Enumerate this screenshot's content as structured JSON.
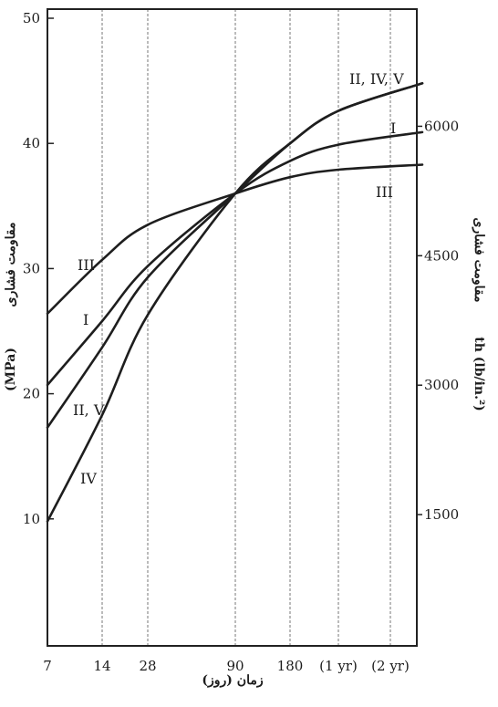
{
  "chart_data": {
    "type": "line",
    "title": "",
    "x": {
      "label": "زمان (روز)",
      "ticks": [
        "7",
        "14",
        "28",
        "90",
        "180",
        "(1 yr)",
        "(2 yr)"
      ]
    },
    "y_left": {
      "label_fa": "مقاومت فشاری",
      "label_unit": "(MPa)",
      "range": [
        0,
        50
      ],
      "ticks": [
        10,
        20,
        30,
        40,
        50
      ]
    },
    "y_right": {
      "label_fa": "مقاومت فشاری",
      "label_unit": "th (lb/in.²)",
      "ticks": [
        1500,
        3000,
        4500,
        6000
      ]
    },
    "grid": "vertical dashed lines at each x tick",
    "series": [
      {
        "name": "I",
        "label_at_start": "I",
        "label_at_end": "I",
        "values": [
          20.7,
          25.8,
          30.2,
          36.0,
          38.6,
          39.9,
          40.9
        ]
      },
      {
        "name": "II, V",
        "label_at_start": "II, V",
        "values": [
          17.3,
          23.7,
          29.3,
          36.0,
          40.0,
          42.6,
          44.8
        ]
      },
      {
        "name": "III",
        "label_at_start": "III",
        "label_at_end": "III",
        "values": [
          26.4,
          30.7,
          33.5,
          36.0,
          37.3,
          37.9,
          38.3
        ]
      },
      {
        "name": "IV",
        "label_at_start": "IV",
        "values": [
          9.8,
          18.3,
          26.3,
          36.0,
          40.0,
          42.6,
          44.8
        ]
      }
    ],
    "end_label_shared": "II, IV, V"
  }
}
